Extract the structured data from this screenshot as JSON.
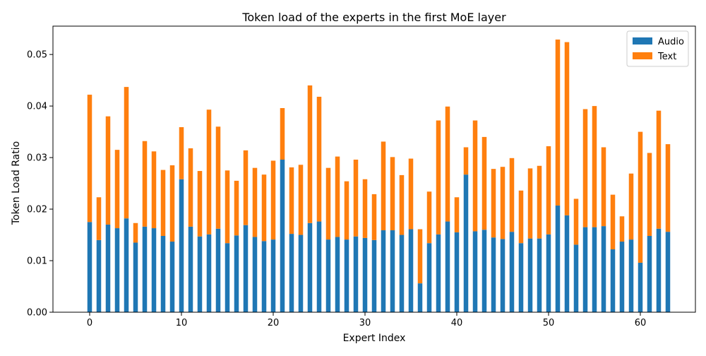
{
  "chart_data": {
    "type": "bar",
    "stacked": true,
    "title": "Token load of the experts in the first MoE layer",
    "xlabel": "Expert Index",
    "ylabel": "Token Load Ratio",
    "xlim": [
      -4,
      66
    ],
    "ylim": [
      0,
      0.0555
    ],
    "xticks": [
      0,
      10,
      20,
      30,
      40,
      50,
      60
    ],
    "xtick_labels": [
      "0",
      "10",
      "20",
      "30",
      "40",
      "50",
      "60"
    ],
    "yticks": [
      0,
      0.01,
      0.02,
      0.03,
      0.04,
      0.05
    ],
    "ytick_labels": [
      "0.00",
      "0.01",
      "0.02",
      "0.03",
      "0.04",
      "0.05"
    ],
    "grid": false,
    "legend_position": "top-right",
    "x": [
      0,
      1,
      2,
      3,
      4,
      5,
      6,
      7,
      8,
      9,
      10,
      11,
      12,
      13,
      14,
      15,
      16,
      17,
      18,
      19,
      20,
      21,
      22,
      23,
      24,
      25,
      26,
      27,
      28,
      29,
      30,
      31,
      32,
      33,
      34,
      35,
      36,
      37,
      38,
      39,
      40,
      41,
      42,
      43,
      44,
      45,
      46,
      47,
      48,
      49,
      50,
      51,
      52,
      53,
      54,
      55,
      56,
      57,
      58,
      59,
      60,
      61,
      62,
      63
    ],
    "series": [
      {
        "name": "Audio",
        "color": "#1f77b4",
        "values": [
          0.0175,
          0.014,
          0.017,
          0.0163,
          0.0182,
          0.0135,
          0.0166,
          0.0163,
          0.0148,
          0.0137,
          0.0258,
          0.0166,
          0.0147,
          0.0151,
          0.0162,
          0.0134,
          0.0149,
          0.0169,
          0.0146,
          0.0138,
          0.0141,
          0.0296,
          0.0152,
          0.015,
          0.0173,
          0.0176,
          0.0141,
          0.0146,
          0.0141,
          0.0147,
          0.0144,
          0.014,
          0.0159,
          0.0159,
          0.015,
          0.0161,
          0.0056,
          0.0134,
          0.0151,
          0.0176,
          0.0155,
          0.0267,
          0.0157,
          0.016,
          0.0145,
          0.0142,
          0.0156,
          0.0134,
          0.0143,
          0.0143,
          0.0151,
          0.0207,
          0.0188,
          0.0131,
          0.0165,
          0.0165,
          0.0167,
          0.0122,
          0.0137,
          0.0141,
          0.0096,
          0.0148,
          0.0162,
          0.0156
        ]
      },
      {
        "name": "Text",
        "color": "#ff7f0e",
        "values": [
          0.0247,
          0.0083,
          0.021,
          0.0152,
          0.0255,
          0.0038,
          0.0166,
          0.0149,
          0.0128,
          0.0148,
          0.0101,
          0.0152,
          0.0127,
          0.0242,
          0.0198,
          0.0141,
          0.0106,
          0.0145,
          0.0134,
          0.0129,
          0.0153,
          0.01,
          0.0129,
          0.0136,
          0.0267,
          0.0242,
          0.0139,
          0.0156,
          0.0113,
          0.0149,
          0.0114,
          0.0089,
          0.0172,
          0.0142,
          0.0116,
          0.0137,
          0.0105,
          0.01,
          0.0221,
          0.0223,
          0.0068,
          0.0053,
          0.0215,
          0.018,
          0.0133,
          0.014,
          0.0143,
          0.0102,
          0.0136,
          0.0141,
          0.0171,
          0.0322,
          0.0336,
          0.0089,
          0.0229,
          0.0235,
          0.0153,
          0.0106,
          0.0049,
          0.0128,
          0.0254,
          0.0161,
          0.0229,
          0.017
        ]
      }
    ]
  }
}
